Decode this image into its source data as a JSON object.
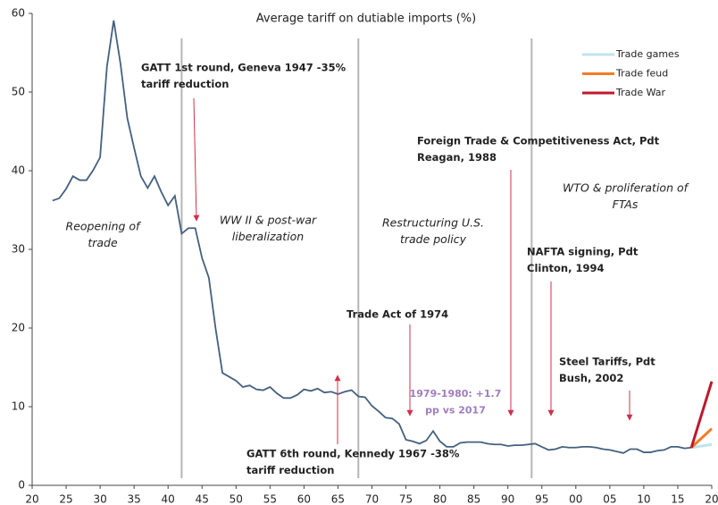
{
  "chart_data": {
    "type": "line",
    "title": "Average tariff on dutiable imports (%)",
    "x": [
      1923,
      1924,
      1925,
      1926,
      1927,
      1928,
      1929,
      1930,
      1931,
      1932,
      1933,
      1934,
      1935,
      1936,
      1937,
      1938,
      1939,
      1940,
      1941,
      1942,
      1943,
      1944,
      1945,
      1946,
      1947,
      1948,
      1949,
      1950,
      1951,
      1952,
      1953,
      1954,
      1955,
      1956,
      1957,
      1958,
      1959,
      1960,
      1961,
      1962,
      1963,
      1964,
      1965,
      1966,
      1967,
      1968,
      1969,
      1970,
      1971,
      1972,
      1973,
      1974,
      1975,
      1976,
      1977,
      1978,
      1979,
      1980,
      1981,
      1982,
      1983,
      1984,
      1985,
      1986,
      1987,
      1988,
      1989,
      1990,
      1991,
      1992,
      1993,
      1994,
      1995,
      1996,
      1997,
      1998,
      1999,
      2000,
      2001,
      2002,
      2003,
      2004,
      2005,
      2006,
      2007,
      2008,
      2009,
      2010,
      2011,
      2012,
      2013,
      2014,
      2015,
      2016,
      2017
    ],
    "values": [
      36.2,
      36.5,
      37.7,
      39.3,
      38.8,
      38.8,
      40.1,
      41.7,
      53.2,
      59.1,
      53.6,
      46.7,
      42.9,
      39.3,
      37.8,
      39.3,
      37.3,
      35.6,
      36.8,
      32.0,
      32.7,
      32.7,
      28.9,
      26.4,
      19.9,
      14.3,
      13.8,
      13.3,
      12.5,
      12.7,
      12.2,
      12.1,
      12.5,
      11.7,
      11.1,
      11.1,
      11.5,
      12.2,
      12.0,
      12.3,
      11.8,
      11.9,
      11.6,
      11.9,
      12.1,
      11.3,
      11.2,
      10.1,
      9.4,
      8.6,
      8.5,
      7.8,
      5.8,
      5.6,
      5.3,
      5.7,
      6.9,
      5.6,
      4.9,
      4.9,
      5.4,
      5.5,
      5.5,
      5.5,
      5.3,
      5.2,
      5.2,
      5.0,
      5.1,
      5.1,
      5.2,
      5.3,
      4.9,
      4.5,
      4.6,
      4.9,
      4.8,
      4.8,
      4.9,
      4.9,
      4.8,
      4.6,
      4.5,
      4.3,
      4.1,
      4.6,
      4.6,
      4.2,
      4.2,
      4.4,
      4.5,
      4.9,
      4.9,
      4.7,
      4.8
    ],
    "color": "#44607f",
    "series": [
      {
        "name": "Trade games",
        "color": "#bfe4ef",
        "x": [
          2017,
          2020
        ],
        "values": [
          4.8,
          5.2
        ]
      },
      {
        "name": "Trade feud",
        "color": "#f07d22",
        "x": [
          2017,
          2020
        ],
        "values": [
          4.8,
          7.2
        ]
      },
      {
        "name": "Trade War",
        "color": "#c0182b",
        "x": [
          2017,
          2020
        ],
        "values": [
          4.8,
          13.2
        ]
      }
    ],
    "reference_lines": [
      1942,
      1968,
      1993.5
    ],
    "xlim": [
      1920,
      2020
    ],
    "xticks": [
      {
        "value": 1920,
        "label": "20"
      },
      {
        "value": 1925,
        "label": "25"
      },
      {
        "value": 1930,
        "label": "30"
      },
      {
        "value": 1935,
        "label": "35"
      },
      {
        "value": 1940,
        "label": "40"
      },
      {
        "value": 1945,
        "label": "45"
      },
      {
        "value": 1950,
        "label": "50"
      },
      {
        "value": 1955,
        "label": "55"
      },
      {
        "value": 1960,
        "label": "60"
      },
      {
        "value": 1965,
        "label": "65"
      },
      {
        "value": 1970,
        "label": "70"
      },
      {
        "value": 1975,
        "label": "75"
      },
      {
        "value": 1980,
        "label": "80"
      },
      {
        "value": 1985,
        "label": "85"
      },
      {
        "value": 1990,
        "label": "90"
      },
      {
        "value": 1995,
        "label": "95"
      },
      {
        "value": 2000,
        "label": "00"
      },
      {
        "value": 2005,
        "label": "05"
      },
      {
        "value": 2010,
        "label": "10"
      },
      {
        "value": 2015,
        "label": "15"
      },
      {
        "value": 2020,
        "label": "20"
      }
    ],
    "ylim": [
      0,
      60
    ],
    "yticks": [
      0,
      10,
      20,
      30,
      40,
      50,
      60
    ],
    "annotations": [
      {
        "lines": [
          "GATT 1st round, Geneva 1947 -35%",
          "tariff reduction"
        ]
      },
      {
        "lines": [
          "Foreign Trade & Competitiveness Act, Pdt",
          "Reagan, 1988"
        ]
      },
      {
        "lines": [
          "NAFTA signing, Pdt",
          "Clinton, 1994"
        ]
      },
      {
        "lines": [
          "Trade Act of 1974"
        ]
      },
      {
        "lines": [
          "Steel Tariffs, Pdt",
          "Bush, 2002"
        ]
      },
      {
        "lines": [
          "GATT 6th round, Kennedy 1967 -38%",
          "tariff reduction"
        ]
      },
      {
        "lines": [
          "1979-1980: +1.7",
          "pp vs 2017"
        ]
      },
      {
        "lines": [
          "Reopening of",
          "trade"
        ]
      },
      {
        "lines": [
          "WW II & post-war",
          "liberalization"
        ]
      },
      {
        "lines": [
          "Restructuring U.S.",
          "trade policy"
        ]
      },
      {
        "lines": [
          "WTO & proliferation of",
          "FTAs"
        ]
      }
    ]
  }
}
